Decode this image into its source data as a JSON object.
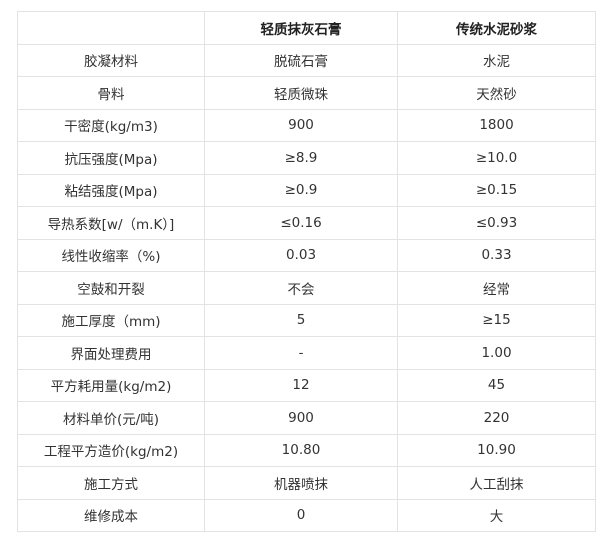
{
  "header": [
    "",
    "轻质抹灰石膏",
    "传统水泥砂浆"
  ],
  "rows": [
    [
      "胶凝材料",
      "脱硫石膏",
      "水泥"
    ],
    [
      "骨料",
      "轻质微珠",
      "天然砂"
    ],
    [
      "干密度(kg/m3)",
      "900",
      "1800"
    ],
    [
      "抗压强度(Mpa)",
      "≥8.9",
      "≥10.0"
    ],
    [
      "粘结强度(Mpa)",
      "≥0.9",
      "≥0.15"
    ],
    [
      "导热系数[w/（m.K）]",
      "≤0.16",
      "≤0.93"
    ],
    [
      "线性收缩率（%)",
      "0.03",
      "0.33"
    ],
    [
      "空鼓和开裂",
      "不会",
      "经常"
    ],
    [
      "施工厚度（mm)",
      "5",
      "≥15"
    ],
    [
      "界面处理费用",
      "-",
      "1.00"
    ],
    [
      "平方耗用量(kg/m2)",
      "12",
      "45"
    ],
    [
      "材料单价(元/吨)",
      "900",
      "220"
    ],
    [
      "工程平方造价(kg/m2)",
      "10.80",
      "10.90"
    ],
    [
      "施工方式",
      "机器喷抹",
      "人工刮抹"
    ],
    [
      "维修成本",
      "0",
      "大"
    ]
  ]
}
